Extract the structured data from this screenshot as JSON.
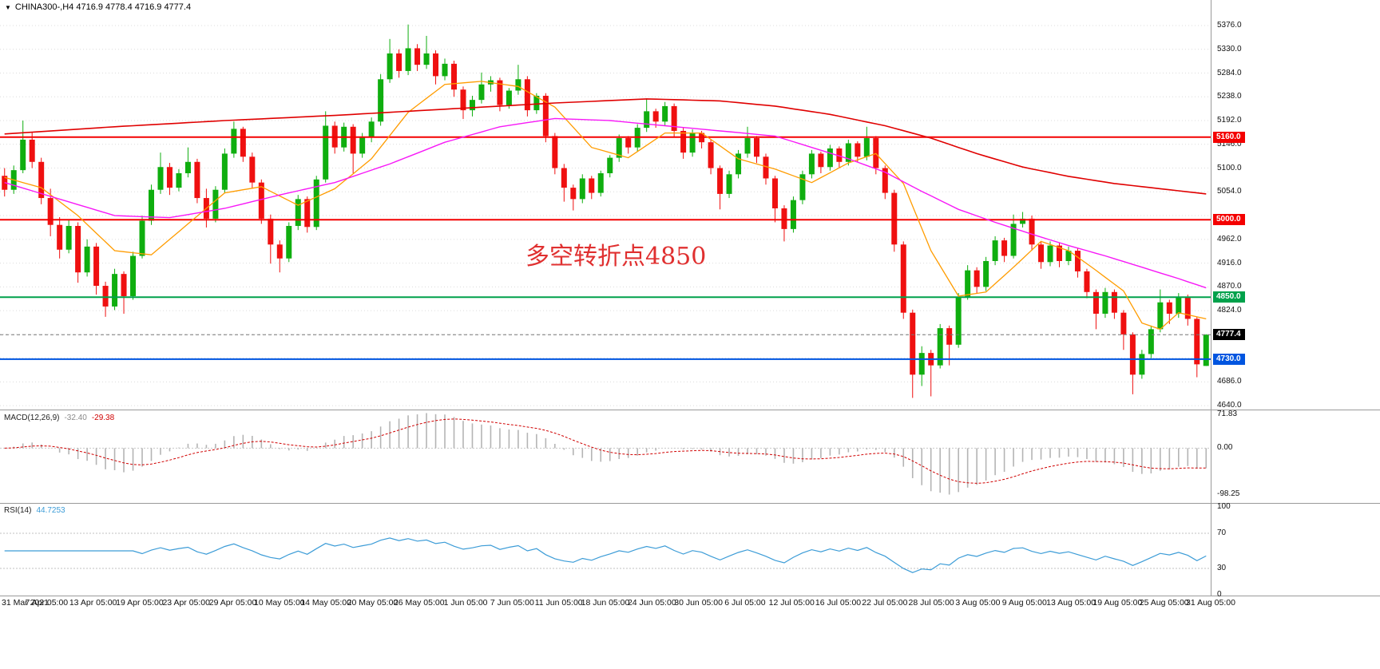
{
  "header": {
    "dropdown_icon": "▼",
    "symbol_line": "CHINA300-,H4 4716.9 4778.4 4716.9 4777.4"
  },
  "annotation": {
    "text": "多空转折点4850"
  },
  "colors": {
    "up": "#0fae0f",
    "down": "#ef1010"
  },
  "price_scale": {
    "ticks": [
      5376.0,
      5330.0,
      5284.0,
      5238.0,
      5192.0,
      5146.0,
      5100.0,
      5054.0,
      4962.0,
      4916.0,
      4870.0,
      4824.0,
      4686.0,
      4640.0
    ],
    "badges": [
      {
        "label": "5160.0",
        "value": 5160.0,
        "bg": "#f40000"
      },
      {
        "label": "5000.0",
        "value": 5000.0,
        "bg": "#f40000"
      },
      {
        "label": "4850.0",
        "value": 4850.0,
        "bg": "#00a14b"
      },
      {
        "label": "4777.4",
        "value": 4777.4,
        "bg": "#000000"
      },
      {
        "label": "4730.0",
        "value": 4730.0,
        "bg": "#0055e0"
      }
    ]
  },
  "chart_data": {
    "type": "candlestick",
    "symbol": "CHINA300-",
    "timeframe": "H4",
    "ohlc_current": {
      "open": 4716.9,
      "high": 4778.4,
      "low": 4716.9,
      "close": 4777.4
    },
    "y_axis": {
      "min": 4634,
      "max": 5410,
      "tick_step": 46,
      "grid_start": 4640,
      "grid_end": 5376
    },
    "x_labels": [
      "31 Mar 2021",
      "7 Apr 05:00",
      "13 Apr 05:00",
      "19 Apr 05:00",
      "23 Apr 05:00",
      "29 Apr 05:00",
      "10 May 05:00",
      "14 May 05:00",
      "20 May 05:00",
      "26 May 05:00",
      "1 Jun 05:00",
      "7 Jun 05:00",
      "11 Jun 05:00",
      "18 Jun 05:00",
      "24 Jun 05:00",
      "30 Jun 05:00",
      "6 Jul 05:00",
      "12 Jul 05:00",
      "16 Jul 05:00",
      "22 Jul 05:00",
      "28 Jul 05:00",
      "3 Aug 05:00",
      "9 Aug 05:00",
      "13 Aug 05:00",
      "19 Aug 05:00",
      "25 Aug 05:00",
      "31 Aug 05:00"
    ],
    "levels": [
      {
        "value": 5160.0,
        "color": "#f40000",
        "width": 2,
        "style": "solid"
      },
      {
        "value": 5000.0,
        "color": "#f40000",
        "width": 2,
        "style": "solid"
      },
      {
        "value": 4850.0,
        "color": "#00a14b",
        "width": 2,
        "style": "solid"
      },
      {
        "value": 4730.0,
        "color": "#0055e0",
        "width": 2,
        "style": "solid"
      },
      {
        "value": 4777.4,
        "color": "#777777",
        "width": 1,
        "style": "dashed"
      }
    ],
    "candles": [
      [
        5085,
        5100,
        5045,
        5058
      ],
      [
        5058,
        5105,
        5050,
        5096
      ],
      [
        5096,
        5192,
        5090,
        5155
      ],
      [
        5155,
        5170,
        5100,
        5112
      ],
      [
        5112,
        5120,
        5030,
        5042
      ],
      [
        5042,
        5060,
        4968,
        4990
      ],
      [
        4990,
        5005,
        4925,
        4942
      ],
      [
        4942,
        5000,
        4935,
        4988
      ],
      [
        4988,
        4995,
        4878,
        4898
      ],
      [
        4898,
        4962,
        4890,
        4948
      ],
      [
        4948,
        4955,
        4855,
        4872
      ],
      [
        4872,
        4880,
        4812,
        4832
      ],
      [
        4832,
        4905,
        4825,
        4895
      ],
      [
        4895,
        4900,
        4818,
        4852
      ],
      [
        4852,
        4938,
        4845,
        4930
      ],
      [
        4930,
        5008,
        4925,
        4998
      ],
      [
        4998,
        5068,
        4990,
        5058
      ],
      [
        5058,
        5130,
        5050,
        5102
      ],
      [
        5102,
        5110,
        5048,
        5062
      ],
      [
        5062,
        5098,
        5055,
        5090
      ],
      [
        5090,
        5140,
        5082,
        5112
      ],
      [
        5112,
        5118,
        5032,
        5042
      ],
      [
        5042,
        5060,
        4985,
        5002
      ],
      [
        5002,
        5065,
        4995,
        5058
      ],
      [
        5058,
        5138,
        5052,
        5128
      ],
      [
        5128,
        5190,
        5120,
        5176
      ],
      [
        5176,
        5180,
        5112,
        5122
      ],
      [
        5122,
        5130,
        5060,
        5072
      ],
      [
        5072,
        5078,
        4992,
        5002
      ],
      [
        5002,
        5010,
        4915,
        4952
      ],
      [
        4952,
        4960,
        4898,
        4925
      ],
      [
        4925,
        4995,
        4918,
        4988
      ],
      [
        4988,
        5048,
        4980,
        5040
      ],
      [
        5040,
        5045,
        4975,
        4986
      ],
      [
        4986,
        5085,
        4980,
        5078
      ],
      [
        5078,
        5210,
        5072,
        5182
      ],
      [
        5182,
        5190,
        5128,
        5140
      ],
      [
        5140,
        5188,
        5132,
        5180
      ],
      [
        5180,
        5185,
        5090,
        5128
      ],
      [
        5128,
        5168,
        5120,
        5160
      ],
      [
        5160,
        5198,
        5150,
        5190
      ],
      [
        5190,
        5282,
        5182,
        5272
      ],
      [
        5272,
        5350,
        5265,
        5322
      ],
      [
        5322,
        5330,
        5275,
        5288
      ],
      [
        5288,
        5378,
        5280,
        5332
      ],
      [
        5332,
        5340,
        5288,
        5300
      ],
      [
        5300,
        5356,
        5292,
        5322
      ],
      [
        5322,
        5328,
        5262,
        5278
      ],
      [
        5278,
        5312,
        5270,
        5302
      ],
      [
        5302,
        5308,
        5238,
        5252
      ],
      [
        5252,
        5258,
        5195,
        5212
      ],
      [
        5212,
        5240,
        5200,
        5232
      ],
      [
        5232,
        5285,
        5225,
        5262
      ],
      [
        5262,
        5278,
        5248,
        5270
      ],
      [
        5270,
        5275,
        5210,
        5222
      ],
      [
        5222,
        5255,
        5215,
        5250
      ],
      [
        5250,
        5300,
        5242,
        5272
      ],
      [
        5272,
        5278,
        5200,
        5212
      ],
      [
        5212,
        5245,
        5205,
        5240
      ],
      [
        5240,
        5245,
        5150,
        5162
      ],
      [
        5162,
        5168,
        5088,
        5100
      ],
      [
        5100,
        5108,
        5035,
        5062
      ],
      [
        5062,
        5068,
        5018,
        5040
      ],
      [
        5040,
        5088,
        5032,
        5080
      ],
      [
        5080,
        5085,
        5040,
        5052
      ],
      [
        5052,
        5095,
        5045,
        5090
      ],
      [
        5090,
        5125,
        5082,
        5120
      ],
      [
        5120,
        5165,
        5112,
        5158
      ],
      [
        5158,
        5162,
        5128,
        5140
      ],
      [
        5140,
        5185,
        5132,
        5178
      ],
      [
        5178,
        5235,
        5170,
        5210
      ],
      [
        5210,
        5215,
        5178,
        5190
      ],
      [
        5190,
        5228,
        5182,
        5220
      ],
      [
        5220,
        5225,
        5160,
        5172
      ],
      [
        5172,
        5178,
        5118,
        5130
      ],
      [
        5130,
        5175,
        5122,
        5168
      ],
      [
        5168,
        5172,
        5138,
        5150
      ],
      [
        5150,
        5155,
        5088,
        5100
      ],
      [
        5100,
        5105,
        5020,
        5050
      ],
      [
        5050,
        5095,
        5042,
        5088
      ],
      [
        5088,
        5135,
        5080,
        5128
      ],
      [
        5128,
        5180,
        5120,
        5158
      ],
      [
        5158,
        5162,
        5110,
        5122
      ],
      [
        5122,
        5128,
        5068,
        5080
      ],
      [
        5080,
        5085,
        4995,
        5022
      ],
      [
        5022,
        5028,
        4958,
        4982
      ],
      [
        4982,
        5045,
        4975,
        5038
      ],
      [
        5038,
        5095,
        5030,
        5088
      ],
      [
        5088,
        5135,
        5080,
        5128
      ],
      [
        5128,
        5132,
        5090,
        5102
      ],
      [
        5102,
        5145,
        5095,
        5138
      ],
      [
        5138,
        5142,
        5100,
        5112
      ],
      [
        5112,
        5155,
        5105,
        5148
      ],
      [
        5148,
        5152,
        5112,
        5122
      ],
      [
        5122,
        5180,
        5115,
        5158
      ],
      [
        5158,
        5162,
        5088,
        5100
      ],
      [
        5100,
        5105,
        5040,
        5052
      ],
      [
        5052,
        5058,
        4938,
        4952
      ],
      [
        4952,
        4958,
        4808,
        4820
      ],
      [
        4820,
        4826,
        4655,
        4700
      ],
      [
        4700,
        4755,
        4678,
        4742
      ],
      [
        4742,
        4748,
        4658,
        4718
      ],
      [
        4718,
        4798,
        4712,
        4790
      ],
      [
        4790,
        4795,
        4718,
        4758
      ],
      [
        4758,
        4858,
        4752,
        4850
      ],
      [
        4850,
        4912,
        4845,
        4902
      ],
      [
        4902,
        4908,
        4858,
        4870
      ],
      [
        4870,
        4928,
        4862,
        4920
      ],
      [
        4920,
        4968,
        4912,
        4960
      ],
      [
        4960,
        4965,
        4918,
        4930
      ],
      [
        4930,
        5010,
        4925,
        4992
      ],
      [
        4992,
        5015,
        4985,
        5002
      ],
      [
        5002,
        5008,
        4940,
        4952
      ],
      [
        4952,
        4958,
        4905,
        4918
      ],
      [
        4918,
        4958,
        4910,
        4950
      ],
      [
        4950,
        4955,
        4908,
        4920
      ],
      [
        4920,
        4948,
        4912,
        4940
      ],
      [
        4940,
        4945,
        4888,
        4900
      ],
      [
        4900,
        4905,
        4848,
        4860
      ],
      [
        4860,
        4865,
        4788,
        4818
      ],
      [
        4818,
        4868,
        4810,
        4860
      ],
      [
        4860,
        4865,
        4808,
        4820
      ],
      [
        4820,
        4825,
        4748,
        4778
      ],
      [
        4778,
        4782,
        4662,
        4700
      ],
      [
        4700,
        4748,
        4692,
        4740
      ],
      [
        4740,
        4795,
        4732,
        4788
      ],
      [
        4788,
        4865,
        4782,
        4840
      ],
      [
        4840,
        4845,
        4798,
        4818
      ],
      [
        4818,
        4858,
        4810,
        4850
      ],
      [
        4850,
        4855,
        4795,
        4808
      ],
      [
        4808,
        4812,
        4695,
        4720
      ],
      [
        4716.9,
        4778.4,
        4716.9,
        4777.4
      ]
    ],
    "moving_averages": [
      {
        "name": "ma-fast-line",
        "color": "#ff9c00",
        "width": 1.3,
        "points": [
          [
            0,
            5082
          ],
          [
            4,
            5062
          ],
          [
            8,
            5008
          ],
          [
            12,
            4940
          ],
          [
            16,
            4932
          ],
          [
            20,
            4992
          ],
          [
            24,
            5052
          ],
          [
            28,
            5064
          ],
          [
            32,
            5028
          ],
          [
            36,
            5060
          ],
          [
            40,
            5118
          ],
          [
            44,
            5208
          ],
          [
            48,
            5262
          ],
          [
            52,
            5268
          ],
          [
            56,
            5258
          ],
          [
            60,
            5218
          ],
          [
            64,
            5140
          ],
          [
            68,
            5120
          ],
          [
            72,
            5168
          ],
          [
            76,
            5168
          ],
          [
            80,
            5118
          ],
          [
            84,
            5098
          ],
          [
            88,
            5072
          ],
          [
            92,
            5110
          ],
          [
            95,
            5128
          ],
          [
            98,
            5070
          ],
          [
            101,
            4940
          ],
          [
            104,
            4852
          ],
          [
            107,
            4860
          ],
          [
            110,
            4908
          ],
          [
            113,
            4958
          ],
          [
            116,
            4940
          ],
          [
            119,
            4902
          ],
          [
            122,
            4862
          ],
          [
            124,
            4800
          ],
          [
            126,
            4788
          ],
          [
            128,
            4820
          ],
          [
            131,
            4808
          ]
        ]
      },
      {
        "name": "ma-mid-line",
        "color": "#f718f7",
        "width": 1.4,
        "points": [
          [
            0,
            5072
          ],
          [
            6,
            5040
          ],
          [
            12,
            5008
          ],
          [
            18,
            5004
          ],
          [
            24,
            5022
          ],
          [
            30,
            5048
          ],
          [
            36,
            5072
          ],
          [
            42,
            5108
          ],
          [
            48,
            5150
          ],
          [
            54,
            5180
          ],
          [
            60,
            5196
          ],
          [
            66,
            5192
          ],
          [
            72,
            5182
          ],
          [
            78,
            5172
          ],
          [
            84,
            5162
          ],
          [
            88,
            5140
          ],
          [
            92,
            5118
          ],
          [
            96,
            5092
          ],
          [
            100,
            5055
          ],
          [
            104,
            5020
          ],
          [
            108,
            4995
          ],
          [
            112,
            4972
          ],
          [
            116,
            4950
          ],
          [
            120,
            4930
          ],
          [
            124,
            4908
          ],
          [
            128,
            4886
          ],
          [
            131,
            4868
          ]
        ]
      },
      {
        "name": "ma-slow-line",
        "color": "#e00000",
        "width": 1.6,
        "points": [
          [
            0,
            5166
          ],
          [
            12,
            5180
          ],
          [
            24,
            5192
          ],
          [
            36,
            5202
          ],
          [
            48,
            5214
          ],
          [
            60,
            5226
          ],
          [
            70,
            5234
          ],
          [
            78,
            5230
          ],
          [
            84,
            5220
          ],
          [
            90,
            5204
          ],
          [
            96,
            5182
          ],
          [
            101,
            5158
          ],
          [
            106,
            5128
          ],
          [
            111,
            5102
          ],
          [
            116,
            5084
          ],
          [
            121,
            5070
          ],
          [
            126,
            5060
          ],
          [
            131,
            5050
          ]
        ]
      }
    ],
    "macd": {
      "label": "MACD(12,26,9)",
      "value_main": "-32.40",
      "value_signal": "-29.38",
      "axis_labels": [
        {
          "text": "71.83",
          "value": 71.83
        },
        {
          "text": "0.00",
          "value": 0
        },
        {
          "text": "-98.25",
          "value": -98.25
        }
      ],
      "range": [
        77,
        -113
      ],
      "histogram_color": "#b4b4b4",
      "signal_color": "#d00000"
    },
    "rsi": {
      "label": "RSI(14)",
      "value": "44.7253",
      "axis_labels": [
        {
          "text": "100",
          "value": 100
        },
        {
          "text": "70",
          "value": 70
        },
        {
          "text": "30",
          "value": 30
        },
        {
          "text": "0",
          "value": 0
        }
      ],
      "levels": [
        70,
        30
      ],
      "color": "#3c9cd7"
    }
  }
}
